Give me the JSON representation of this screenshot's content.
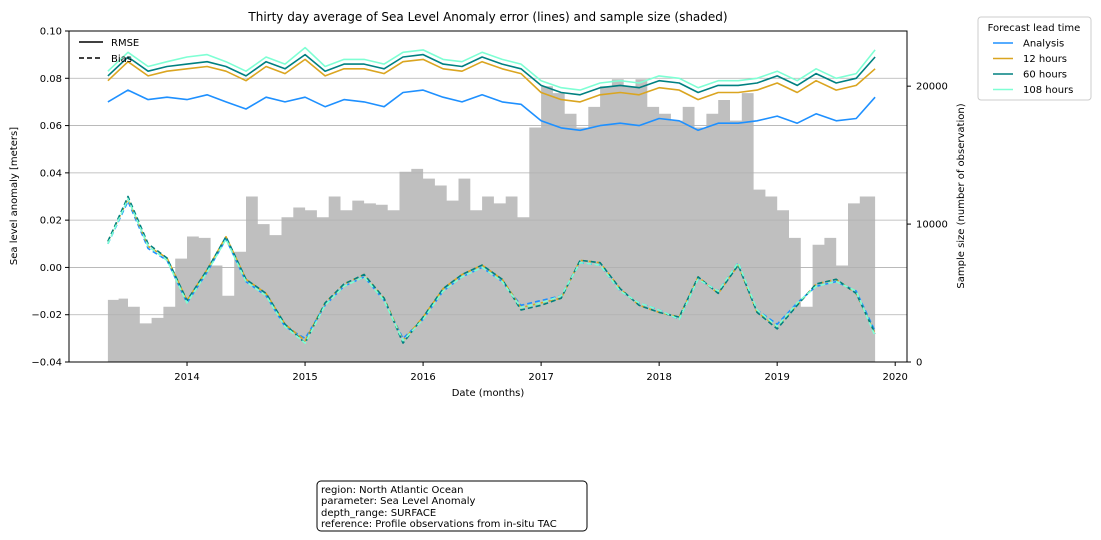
{
  "chart_data": {
    "type": "line",
    "title": "Thirty day average of Sea Level Anomaly error (lines) and sample size (shaded)",
    "xlabel": "Date (months)",
    "ylabel": "Sea level anomaly [meters]",
    "y2label": "Sample size (number of observation)",
    "xlim": [
      2013.0,
      2020.1
    ],
    "ylim": [
      -0.04,
      0.1
    ],
    "y2lim": [
      0,
      24000
    ],
    "x_ticks": [
      2014,
      2015,
      2016,
      2017,
      2018,
      2019,
      2020
    ],
    "x_tick_labels": [
      "2014",
      "2015",
      "2016",
      "2017",
      "2018",
      "2019",
      "2020"
    ],
    "y_ticks": [
      -0.04,
      -0.02,
      0.0,
      0.02,
      0.04,
      0.06,
      0.08,
      0.1
    ],
    "y_tick_labels": [
      "−0.04",
      "−0.02",
      "0.00",
      "0.02",
      "0.04",
      "0.06",
      "0.08",
      "0.10"
    ],
    "y2_ticks": [
      0,
      10000,
      20000
    ],
    "y2_tick_labels": [
      "0",
      "10000",
      "20000"
    ],
    "grid": "horizontal",
    "style_legend": {
      "placement": "top-left",
      "entries": [
        {
          "label": "RMSE",
          "style": "solid"
        },
        {
          "label": "Bias",
          "style": "dashed"
        }
      ]
    },
    "series_legend": {
      "title": "Forecast lead time",
      "placement": "outside top-right",
      "entries": [
        {
          "label": "Analysis",
          "color": "#1e90ff"
        },
        {
          "label": "12 hours",
          "color": "#daa520"
        },
        {
          "label": "60 hours",
          "color": "#008080"
        },
        {
          "label": "108 hours",
          "color": "#7fffd4"
        }
      ]
    },
    "x": [
      2013.33,
      2013.5,
      2013.67,
      2013.83,
      2014.0,
      2014.17,
      2014.33,
      2014.5,
      2014.67,
      2014.83,
      2015.0,
      2015.17,
      2015.33,
      2015.5,
      2015.67,
      2015.83,
      2016.0,
      2016.17,
      2016.33,
      2016.5,
      2016.67,
      2016.83,
      2017.0,
      2017.17,
      2017.33,
      2017.5,
      2017.67,
      2017.83,
      2018.0,
      2018.17,
      2018.33,
      2018.5,
      2018.67,
      2018.83,
      2019.0,
      2019.17,
      2019.33,
      2019.5,
      2019.67,
      2019.83
    ],
    "rmse_series": [
      {
        "name": "Analysis",
        "color": "#1e90ff",
        "values": [
          0.07,
          0.075,
          0.071,
          0.072,
          0.071,
          0.073,
          0.07,
          0.067,
          0.072,
          0.07,
          0.072,
          0.068,
          0.071,
          0.07,
          0.068,
          0.074,
          0.075,
          0.072,
          0.07,
          0.073,
          0.07,
          0.069,
          0.062,
          0.059,
          0.058,
          0.06,
          0.061,
          0.06,
          0.063,
          0.062,
          0.058,
          0.061,
          0.061,
          0.062,
          0.064,
          0.061,
          0.065,
          0.062,
          0.063,
          0.072
        ]
      },
      {
        "name": "12 hours",
        "color": "#daa520",
        "values": [
          0.079,
          0.087,
          0.081,
          0.083,
          0.084,
          0.085,
          0.083,
          0.079,
          0.085,
          0.082,
          0.088,
          0.081,
          0.084,
          0.084,
          0.082,
          0.087,
          0.088,
          0.084,
          0.083,
          0.087,
          0.084,
          0.082,
          0.074,
          0.071,
          0.07,
          0.073,
          0.074,
          0.073,
          0.076,
          0.075,
          0.071,
          0.074,
          0.074,
          0.075,
          0.078,
          0.074,
          0.079,
          0.075,
          0.077,
          0.084
        ]
      },
      {
        "name": "60 hours",
        "color": "#008080",
        "values": [
          0.081,
          0.089,
          0.083,
          0.085,
          0.086,
          0.087,
          0.085,
          0.081,
          0.087,
          0.084,
          0.09,
          0.083,
          0.086,
          0.086,
          0.084,
          0.089,
          0.09,
          0.086,
          0.085,
          0.089,
          0.086,
          0.084,
          0.077,
          0.074,
          0.073,
          0.076,
          0.077,
          0.076,
          0.079,
          0.078,
          0.074,
          0.077,
          0.077,
          0.078,
          0.081,
          0.077,
          0.082,
          0.078,
          0.08,
          0.089
        ]
      },
      {
        "name": "108 hours",
        "color": "#7fffd4",
        "values": [
          0.083,
          0.091,
          0.085,
          0.087,
          0.089,
          0.09,
          0.087,
          0.083,
          0.089,
          0.086,
          0.093,
          0.085,
          0.088,
          0.088,
          0.086,
          0.091,
          0.092,
          0.088,
          0.087,
          0.091,
          0.088,
          0.086,
          0.079,
          0.076,
          0.075,
          0.078,
          0.079,
          0.078,
          0.081,
          0.08,
          0.076,
          0.079,
          0.079,
          0.08,
          0.083,
          0.079,
          0.084,
          0.08,
          0.082,
          0.092
        ]
      }
    ],
    "bias_series": [
      {
        "name": "Analysis",
        "color": "#1e90ff",
        "values": [
          0.01,
          0.028,
          0.008,
          0.003,
          -0.015,
          -0.002,
          0.012,
          -0.006,
          -0.012,
          -0.025,
          -0.03,
          -0.016,
          -0.008,
          -0.004,
          -0.014,
          -0.03,
          -0.022,
          -0.01,
          -0.004,
          0.0,
          -0.006,
          -0.016,
          -0.014,
          -0.012,
          0.002,
          0.001,
          -0.01,
          -0.015,
          -0.018,
          -0.022,
          -0.005,
          -0.01,
          0.002,
          -0.018,
          -0.024,
          -0.015,
          -0.008,
          -0.006,
          -0.01,
          -0.027
        ]
      },
      {
        "name": "12 hours",
        "color": "#daa520",
        "values": [
          0.011,
          0.029,
          0.009,
          0.004,
          -0.014,
          -0.001,
          0.013,
          -0.005,
          -0.011,
          -0.024,
          -0.031,
          -0.015,
          -0.007,
          -0.003,
          -0.013,
          -0.031,
          -0.021,
          -0.009,
          -0.003,
          0.001,
          -0.005,
          -0.017,
          -0.015,
          -0.013,
          0.003,
          0.002,
          -0.009,
          -0.016,
          -0.019,
          -0.021,
          -0.004,
          -0.011,
          0.001,
          -0.019,
          -0.025,
          -0.016,
          -0.007,
          -0.005,
          -0.011,
          -0.028
        ]
      },
      {
        "name": "60 hours",
        "color": "#008080",
        "values": [
          0.011,
          0.03,
          0.01,
          0.004,
          -0.014,
          -0.001,
          0.013,
          -0.005,
          -0.011,
          -0.024,
          -0.032,
          -0.015,
          -0.007,
          -0.003,
          -0.013,
          -0.032,
          -0.021,
          -0.009,
          -0.003,
          0.001,
          -0.005,
          -0.018,
          -0.016,
          -0.013,
          0.003,
          0.002,
          -0.009,
          -0.016,
          -0.019,
          -0.021,
          -0.004,
          -0.011,
          0.001,
          -0.019,
          -0.026,
          -0.016,
          -0.007,
          -0.005,
          -0.011,
          -0.028
        ]
      },
      {
        "name": "108 hours",
        "color": "#7fffd4",
        "values": [
          0.01,
          0.029,
          0.009,
          0.003,
          -0.015,
          -0.002,
          0.012,
          -0.006,
          -0.012,
          -0.025,
          -0.032,
          -0.016,
          -0.008,
          -0.004,
          -0.014,
          -0.031,
          -0.022,
          -0.01,
          -0.004,
          0.0,
          -0.006,
          -0.017,
          -0.015,
          -0.012,
          0.002,
          0.001,
          -0.01,
          -0.015,
          -0.018,
          -0.022,
          -0.005,
          -0.01,
          0.002,
          -0.018,
          -0.025,
          -0.015,
          -0.008,
          -0.006,
          -0.01,
          -0.029
        ]
      }
    ],
    "sample_size": {
      "name": "Sample size",
      "color": "#bfbfbf",
      "x": [
        2013.33,
        2013.42,
        2013.5,
        2013.6,
        2013.7,
        2013.8,
        2013.9,
        2014.0,
        2014.1,
        2014.2,
        2014.3,
        2014.4,
        2014.5,
        2014.6,
        2014.7,
        2014.8,
        2014.9,
        2015.0,
        2015.1,
        2015.2,
        2015.3,
        2015.4,
        2015.5,
        2015.6,
        2015.7,
        2015.8,
        2015.9,
        2016.0,
        2016.1,
        2016.2,
        2016.3,
        2016.4,
        2016.5,
        2016.6,
        2016.7,
        2016.8,
        2016.9,
        2017.0,
        2017.1,
        2017.2,
        2017.3,
        2017.4,
        2017.5,
        2017.6,
        2017.7,
        2017.8,
        2017.9,
        2018.0,
        2018.1,
        2018.2,
        2018.3,
        2018.4,
        2018.5,
        2018.6,
        2018.7,
        2018.8,
        2018.9,
        2019.0,
        2019.1,
        2019.2,
        2019.3,
        2019.4,
        2019.5,
        2019.6,
        2019.7,
        2019.8,
        2019.83
      ],
      "values": [
        4500,
        4600,
        4000,
        2800,
        3200,
        4000,
        7500,
        9100,
        9000,
        7000,
        4800,
        8000,
        12000,
        10000,
        9200,
        10500,
        11200,
        11000,
        10500,
        12000,
        11000,
        11700,
        11500,
        11400,
        11000,
        13800,
        14000,
        13300,
        12800,
        11700,
        13300,
        11000,
        12000,
        11500,
        12000,
        10500,
        17000,
        20000,
        19500,
        18000,
        17000,
        18500,
        20000,
        20500,
        20000,
        20500,
        18500,
        18000,
        17500,
        18500,
        17000,
        18000,
        19000,
        17500,
        19500,
        12500,
        12000,
        11000,
        9000,
        4000,
        8500,
        9000,
        7000,
        11500,
        12000,
        12000,
        11500
      ]
    },
    "info_box": [
      "region: North Atlantic Ocean",
      "parameter: Sea Level Anomaly",
      "depth_range: SURFACE",
      "reference: Profile observations from in-situ TAC"
    ]
  }
}
